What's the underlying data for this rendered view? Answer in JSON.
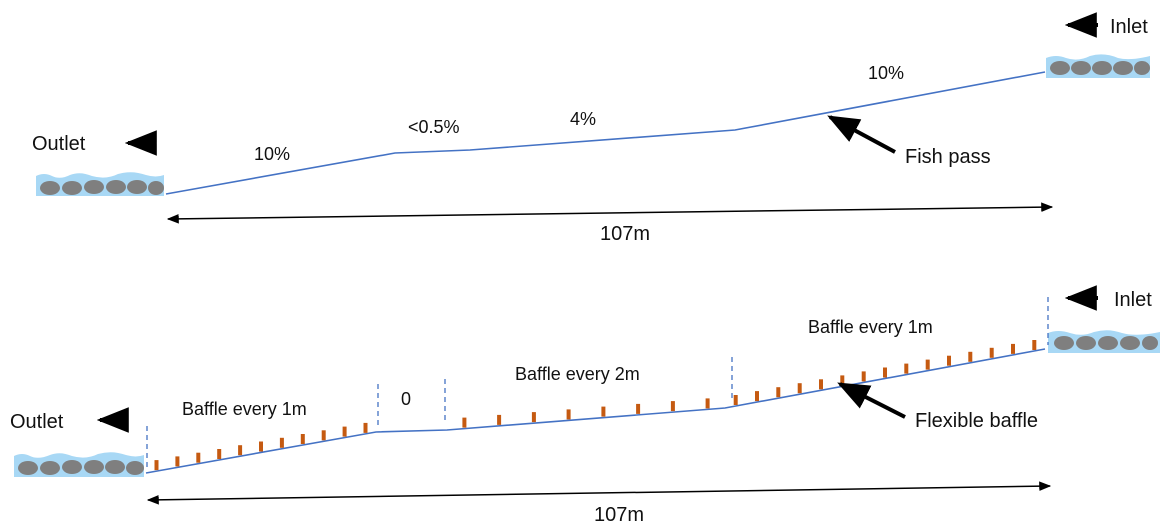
{
  "top": {
    "outlet_label": "Outlet",
    "inlet_label": "Inlet",
    "slopes": [
      "10%",
      "<0.5%",
      "4%",
      "10%"
    ],
    "fish_pass_label": "Fish pass",
    "length_label": "107m"
  },
  "bottom": {
    "outlet_label": "Outlet",
    "inlet_label": "Inlet",
    "segments": [
      "Baffle every 1m",
      "0",
      "Baffle every 2m",
      "Baffle every 1m"
    ],
    "flexible_baffle_label": "Flexible baffle",
    "length_label": "107m"
  },
  "colors": {
    "pipe_line": "#4472c4",
    "baffle": "#c55a11",
    "water": "#a8d8f5",
    "stone": "#7f7f7f",
    "arrow": "#000000"
  },
  "icons": [
    "water-with-stones-icon",
    "arrow-left-icon"
  ]
}
